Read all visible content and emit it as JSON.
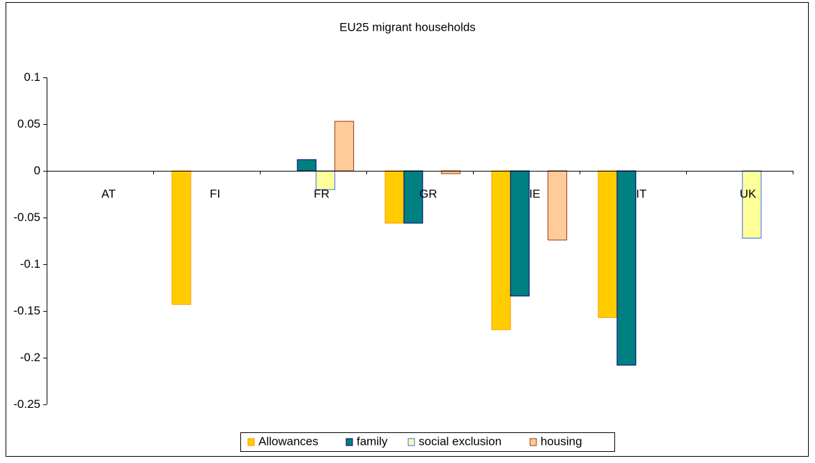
{
  "chart_data": {
    "type": "bar",
    "title": "EU25 migrant households",
    "categories": [
      "AT",
      "FI",
      "FR",
      "GR",
      "IE",
      "IT",
      "UK"
    ],
    "series": [
      {
        "name": "Allowances",
        "color": "#ffcc00",
        "border": "#ff9900",
        "values": [
          null,
          -0.143,
          null,
          -0.056,
          -0.17,
          -0.157,
          null
        ]
      },
      {
        "name": "family",
        "color": "#008080",
        "border": "#000080",
        "values": [
          null,
          null,
          0.012,
          -0.056,
          -0.134,
          -0.208,
          null
        ]
      },
      {
        "name": "social exclusion",
        "color": "#ffff99",
        "border": "#3366ff",
        "values": [
          null,
          null,
          -0.02,
          null,
          null,
          null,
          -0.072
        ]
      },
      {
        "name": "housing",
        "color": "#ffcc99",
        "border": "#993300",
        "values": [
          null,
          null,
          0.053,
          -0.003,
          -0.074,
          null,
          null
        ]
      }
    ],
    "ylim": [
      -0.25,
      0.1
    ],
    "yticks": [
      -0.25,
      -0.2,
      -0.15,
      -0.1,
      -0.05,
      0,
      0.05,
      0.1
    ],
    "grid": false,
    "legend": "bottom"
  }
}
